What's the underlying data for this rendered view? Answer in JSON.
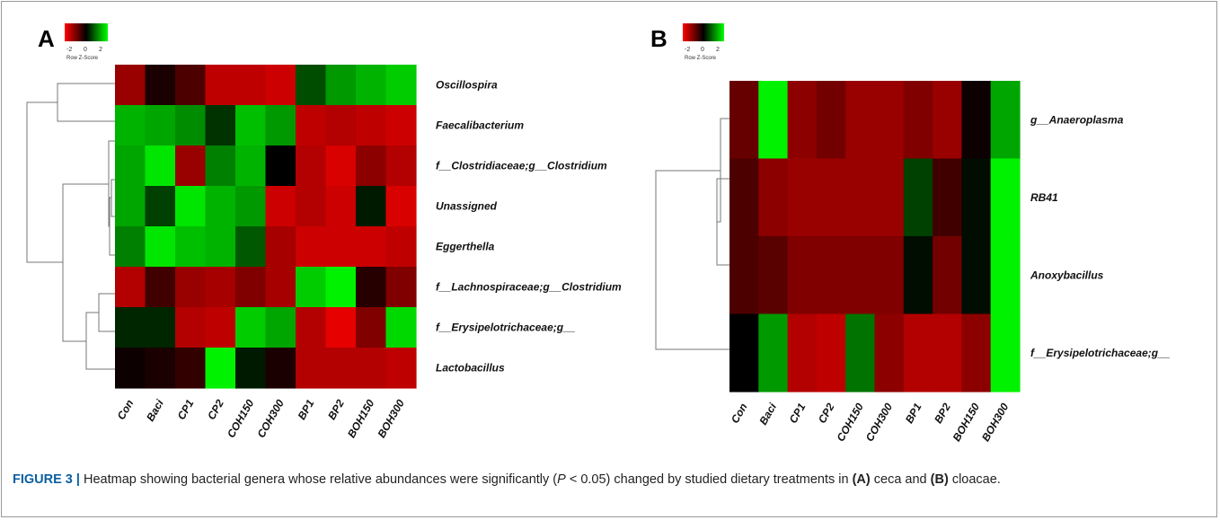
{
  "caption": {
    "label": "FIGURE 3 |",
    "part1": " Heatmap showing bacterial genera whose relative abundances were significantly (",
    "p": "P",
    "part2": " < 0.05) changed by studied dietary treatments in ",
    "a": "(A)",
    "part3": " ceca and ",
    "b": "(B)",
    "part4": " cloacae."
  },
  "colors": {
    "low": "#ff0000",
    "mid": "#000000",
    "high": "#00ff00"
  },
  "chart_data": [
    {
      "type": "heatmap",
      "panel": "A",
      "color_key": {
        "ticks": [
          "-2",
          "0",
          "2"
        ],
        "title": "Row Z-Score",
        "range": [
          -2,
          2
        ]
      },
      "columns": [
        "Con",
        "Baci",
        "CP1",
        "CP2",
        "COH150",
        "COH300",
        "BP1",
        "BP2",
        "BOH150",
        "BOH300"
      ],
      "rows": [
        "Oscillospira",
        "Faecalibacterium",
        "f__Clostridiaceae;g__Clostridium",
        "Unassigned",
        "Eggerthella",
        "f__Lachnospiraceae;g__Clostridium",
        "f__Erysipelotrichaceae;g__",
        "Lactobacillus"
      ],
      "values": [
        [
          -1.2,
          -0.2,
          -0.6,
          -1.5,
          -1.5,
          -1.6,
          0.6,
          1.2,
          1.4,
          1.6
        ],
        [
          1.4,
          1.3,
          1.1,
          0.4,
          1.5,
          1.2,
          -1.5,
          -1.4,
          -1.5,
          -1.6
        ],
        [
          1.3,
          1.8,
          -1.2,
          1.0,
          1.4,
          0.0,
          -1.4,
          -1.7,
          -1.1,
          -1.4
        ],
        [
          1.3,
          0.5,
          1.8,
          1.4,
          1.2,
          -1.6,
          -1.4,
          -1.6,
          0.2,
          -1.7
        ],
        [
          1.0,
          1.8,
          1.5,
          1.4,
          0.7,
          -1.3,
          -1.6,
          -1.6,
          -1.6,
          -1.5
        ],
        [
          -1.4,
          -0.5,
          -1.2,
          -1.3,
          -1.0,
          -1.3,
          1.6,
          1.9,
          -0.3,
          -1.0
        ],
        [
          0.3,
          0.3,
          -1.4,
          -1.5,
          1.6,
          1.3,
          -1.4,
          -1.8,
          -1.0,
          1.7
        ],
        [
          -0.1,
          -0.2,
          -0.4,
          1.9,
          0.2,
          -0.2,
          -1.4,
          -1.4,
          -1.4,
          -1.5
        ]
      ]
    },
    {
      "type": "heatmap",
      "panel": "B",
      "color_key": {
        "ticks": [
          "-2",
          "0",
          "2"
        ],
        "title": "Row Z-Score",
        "range": [
          -2,
          2
        ]
      },
      "columns": [
        "Con",
        "Baci",
        "CP1",
        "CP2",
        "COH150",
        "COH300",
        "BP1",
        "BP2",
        "BOH150",
        "BOH300"
      ],
      "rows": [
        "g__Anaeroplasma",
        "RB41",
        "Anoxybacillus",
        "f__Erysipelotrichaceae;g__"
      ],
      "values": [
        [
          -0.8,
          1.9,
          -1.1,
          -0.9,
          -1.2,
          -1.2,
          -1.0,
          -1.2,
          -0.1,
          1.3
        ],
        [
          -0.6,
          -1.1,
          -1.2,
          -1.2,
          -1.2,
          -1.2,
          0.5,
          -0.5,
          0.1,
          1.9
        ],
        [
          -0.6,
          -0.7,
          -1.0,
          -1.0,
          -1.0,
          -1.0,
          0.1,
          -0.9,
          0.1,
          1.9
        ],
        [
          0.0,
          1.2,
          -1.4,
          -1.5,
          0.9,
          -1.1,
          -1.4,
          -1.4,
          -1.1,
          1.9
        ]
      ]
    }
  ]
}
